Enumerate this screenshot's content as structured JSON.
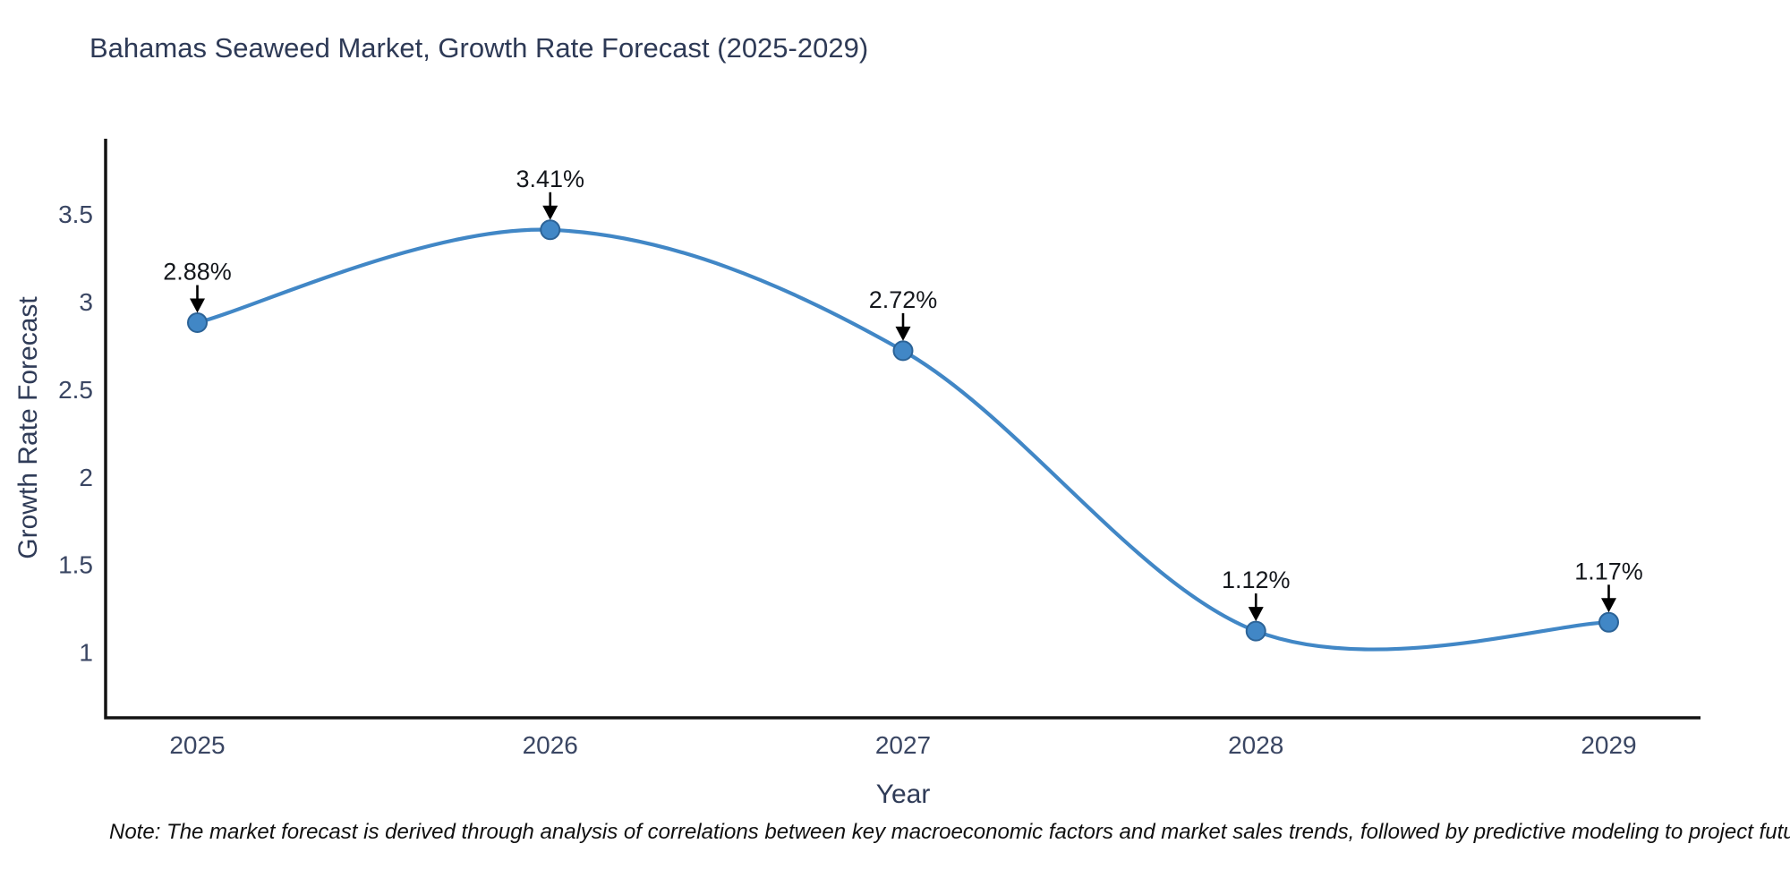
{
  "title": "Bahamas Seaweed Market, Growth Rate Forecast (2025-2029)",
  "note": "Note: The market forecast is derived through analysis of correlations between key macroeconomic factors and market sales trends, followed by predictive modeling to project future sales",
  "colors": {
    "line": "#4187c6",
    "marker_fill": "#4187c6",
    "marker_edge": "#2c6397",
    "axis_line": "#131313",
    "tick_label": "#3a4663",
    "axis_title": "#2f3b57",
    "page_title": "#2e3a56",
    "annotation_text": "#14171c",
    "annotation_arrow": "#000000",
    "background": "#ffffff"
  },
  "chart_data": {
    "type": "line",
    "line_shape": "spline",
    "title": "Bahamas Seaweed Market, Growth Rate Forecast (2025-2029)",
    "xlabel": "Year",
    "ylabel": "Growth Rate Forecast",
    "x": [
      2025,
      2026,
      2027,
      2028,
      2029
    ],
    "values": [
      2.88,
      3.41,
      2.72,
      1.12,
      1.17
    ],
    "point_labels": [
      "2.88%",
      "3.41%",
      "2.72%",
      "1.12%",
      "1.17%"
    ],
    "x_tick_labels": [
      "2025",
      "2026",
      "2027",
      "2028",
      "2029"
    ],
    "y_ticks": [
      1,
      1.5,
      2,
      2.5,
      3,
      3.5
    ],
    "xlim": [
      2024.74,
      2029.26
    ],
    "ylim": [
      0.625,
      3.93
    ],
    "grid": false,
    "legend": "none",
    "markers": true,
    "annotations_with_arrows": true
  }
}
